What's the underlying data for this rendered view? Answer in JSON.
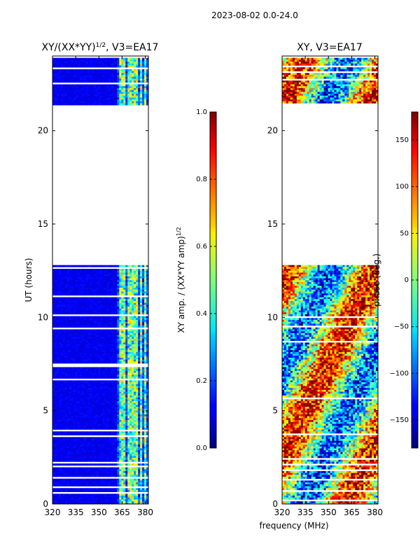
{
  "page_title": "2023-08-02 0.0-24.0",
  "chart_data": [
    {
      "type": "heatmap",
      "id": "left",
      "title": "XY/(XX*YY)",
      "title_sup": "1/2",
      "title_tail": ", V3=EA17",
      "ylabel": "UT (hours)",
      "xlabel": "",
      "xlim": [
        320,
        382
      ],
      "ylim": [
        0,
        24
      ],
      "xticks": [
        320,
        335,
        350,
        365,
        380
      ],
      "xtick_labels": [
        "320",
        "335",
        "350",
        "365",
        "380"
      ],
      "yticks": [
        0,
        5,
        10,
        15,
        20
      ],
      "ytick_labels": [
        "0",
        "5",
        "10",
        "15",
        "20"
      ],
      "data_intervals_hours": [
        [
          0.0,
          12.8
        ],
        [
          21.4,
          23.9
        ]
      ],
      "bright_channels_mhz": [
        364,
        366,
        369,
        371,
        374,
        377,
        380
      ],
      "colorbar": {
        "label": "XY amp. / (XX*YY amp)",
        "label_sup": "1/2",
        "range": [
          0.0,
          1.0
        ],
        "ticks": [
          0.0,
          0.2,
          0.4,
          0.6,
          0.8,
          1.0
        ],
        "tick_labels": [
          "0.0",
          "0.2",
          "0.4",
          "0.6",
          "0.8",
          "1.0"
        ]
      }
    },
    {
      "type": "heatmap",
      "id": "right",
      "title": "XY, V3=EA17",
      "xlabel": "frequency (MHz)",
      "ylabel": "",
      "xlim": [
        320,
        382
      ],
      "ylim": [
        0,
        24
      ],
      "xticks": [
        320,
        335,
        350,
        365,
        380
      ],
      "xtick_labels": [
        "320",
        "335",
        "350",
        "365",
        "380"
      ],
      "yticks": [
        0,
        5,
        10,
        15,
        20
      ],
      "ytick_labels": [
        "0",
        "5",
        "10",
        "15",
        "20"
      ],
      "data_intervals_hours": [
        [
          0.0,
          12.8
        ],
        [
          21.4,
          23.9
        ]
      ],
      "colorbar": {
        "label": "phase (deg.)",
        "range": [
          -180,
          180
        ],
        "ticks": [
          -150,
          -100,
          -50,
          0,
          50,
          100,
          150
        ],
        "tick_labels": [
          "−150",
          "−100",
          "−50",
          "0",
          "50",
          "100",
          "150"
        ]
      }
    }
  ],
  "colormap": "jet"
}
